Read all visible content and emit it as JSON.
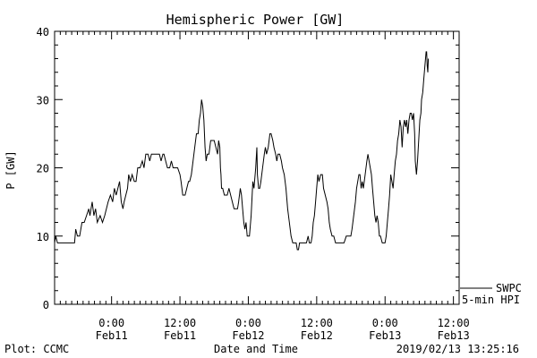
{
  "chart_data": {
    "type": "line",
    "title": "Hemispheric Power [GW]",
    "ylabel": "P [GW]",
    "xlabel": "Date and Time",
    "ylim": [
      0,
      40
    ],
    "xlim": [
      -10,
      61
    ],
    "y_ticks": [
      0,
      10,
      20,
      30,
      40
    ],
    "x_ticks": [
      {
        "x": 0,
        "line1": "0:00",
        "line2": "Feb11"
      },
      {
        "x": 12,
        "line1": "12:00",
        "line2": "Feb11"
      },
      {
        "x": 24,
        "line1": "0:00",
        "line2": "Feb12"
      },
      {
        "x": 36,
        "line1": "12:00",
        "line2": "Feb12"
      },
      {
        "x": 48,
        "line1": "0:00",
        "line2": "Feb13"
      },
      {
        "x": 60,
        "line1": "12:00",
        "line2": "Feb13"
      }
    ],
    "x_units": "hours from 2019-02-11 00:00",
    "series": [
      {
        "name": "5-min HPI",
        "color": "#000000",
        "points": [
          [
            -10.0,
            9
          ],
          [
            -9.8,
            10
          ],
          [
            -9.5,
            9
          ],
          [
            -7.0,
            9
          ],
          [
            -6.5,
            9
          ],
          [
            -6.3,
            11
          ],
          [
            -6.0,
            10
          ],
          [
            -5.6,
            10
          ],
          [
            -5.2,
            12
          ],
          [
            -4.8,
            12
          ],
          [
            -4.4,
            13
          ],
          [
            -4.0,
            14
          ],
          [
            -3.8,
            13
          ],
          [
            -3.4,
            15
          ],
          [
            -3.1,
            13
          ],
          [
            -2.8,
            14
          ],
          [
            -2.5,
            12
          ],
          [
            -2.0,
            13
          ],
          [
            -1.6,
            12
          ],
          [
            -1.2,
            13
          ],
          [
            -0.9,
            14
          ],
          [
            -0.6,
            15
          ],
          [
            -0.2,
            16
          ],
          [
            0.2,
            15
          ],
          [
            0.5,
            17
          ],
          [
            0.8,
            16
          ],
          [
            1.1,
            17
          ],
          [
            1.4,
            18
          ],
          [
            1.7,
            15
          ],
          [
            2.0,
            14
          ],
          [
            2.2,
            15
          ],
          [
            2.5,
            16
          ],
          [
            2.8,
            17
          ],
          [
            3.0,
            19
          ],
          [
            3.3,
            18
          ],
          [
            3.6,
            19
          ],
          [
            4.0,
            18
          ],
          [
            4.3,
            18
          ],
          [
            4.6,
            20
          ],
          [
            5.0,
            20
          ],
          [
            5.4,
            21
          ],
          [
            5.7,
            20
          ],
          [
            6.0,
            22
          ],
          [
            6.4,
            22
          ],
          [
            6.7,
            21
          ],
          [
            7.0,
            22
          ],
          [
            7.4,
            22
          ],
          [
            7.8,
            22
          ],
          [
            8.1,
            22
          ],
          [
            8.4,
            22
          ],
          [
            8.7,
            21
          ],
          [
            9.0,
            22
          ],
          [
            9.2,
            22
          ],
          [
            9.5,
            21
          ],
          [
            9.8,
            20
          ],
          [
            10.2,
            20
          ],
          [
            10.5,
            21
          ],
          [
            10.8,
            20
          ],
          [
            11.2,
            20
          ],
          [
            11.6,
            20
          ],
          [
            12.0,
            19
          ],
          [
            12.2,
            18
          ],
          [
            12.5,
            16
          ],
          [
            12.9,
            16
          ],
          [
            13.2,
            17
          ],
          [
            13.5,
            18
          ],
          [
            13.7,
            18
          ],
          [
            14.0,
            19
          ],
          [
            14.3,
            21
          ],
          [
            14.6,
            23
          ],
          [
            14.9,
            25
          ],
          [
            15.2,
            25
          ],
          [
            15.4,
            27
          ],
          [
            15.6,
            28
          ],
          [
            15.8,
            30
          ],
          [
            16.0,
            29
          ],
          [
            16.2,
            27
          ],
          [
            16.4,
            23
          ],
          [
            16.6,
            21
          ],
          [
            16.8,
            22
          ],
          [
            17.1,
            22
          ],
          [
            17.4,
            24
          ],
          [
            17.7,
            24
          ],
          [
            18.0,
            24
          ],
          [
            18.3,
            23
          ],
          [
            18.6,
            22
          ],
          [
            18.8,
            24
          ],
          [
            19.0,
            23
          ],
          [
            19.1,
            20
          ],
          [
            19.2,
            19
          ],
          [
            19.3,
            17
          ],
          [
            19.5,
            17
          ],
          [
            19.8,
            16
          ],
          [
            20.0,
            16
          ],
          [
            20.3,
            16
          ],
          [
            20.6,
            17
          ],
          [
            20.9,
            16
          ],
          [
            21.2,
            15
          ],
          [
            21.5,
            14
          ],
          [
            21.8,
            14
          ],
          [
            22.1,
            14
          ],
          [
            22.3,
            15
          ],
          [
            22.6,
            17
          ],
          [
            22.8,
            16
          ],
          [
            23.0,
            14
          ],
          [
            23.2,
            12
          ],
          [
            23.4,
            11
          ],
          [
            23.6,
            12
          ],
          [
            23.8,
            10
          ],
          [
            24.0,
            10
          ],
          [
            24.2,
            10
          ],
          [
            24.5,
            13
          ],
          [
            24.8,
            18
          ],
          [
            25.0,
            17
          ],
          [
            25.3,
            20
          ],
          [
            25.5,
            23
          ],
          [
            25.6,
            19
          ],
          [
            25.8,
            17
          ],
          [
            26.0,
            17
          ],
          [
            26.2,
            18
          ],
          [
            26.5,
            20
          ],
          [
            26.8,
            22
          ],
          [
            27.0,
            23
          ],
          [
            27.2,
            22
          ],
          [
            27.5,
            23
          ],
          [
            27.8,
            25
          ],
          [
            28.0,
            25
          ],
          [
            28.3,
            24
          ],
          [
            28.5,
            23
          ],
          [
            28.8,
            22
          ],
          [
            29.0,
            21
          ],
          [
            29.2,
            22
          ],
          [
            29.5,
            22
          ],
          [
            29.8,
            21
          ],
          [
            30.0,
            20
          ],
          [
            30.3,
            19
          ],
          [
            30.6,
            17
          ],
          [
            30.9,
            14
          ],
          [
            31.2,
            12
          ],
          [
            31.5,
            10
          ],
          [
            31.8,
            9
          ],
          [
            32.1,
            9
          ],
          [
            32.4,
            9
          ],
          [
            32.6,
            8
          ],
          [
            32.8,
            8
          ],
          [
            33.0,
            9
          ],
          [
            33.4,
            9
          ],
          [
            33.8,
            9
          ],
          [
            34.2,
            9
          ],
          [
            34.5,
            10
          ],
          [
            34.7,
            9
          ],
          [
            35.0,
            9
          ],
          [
            35.2,
            10
          ],
          [
            35.4,
            12
          ],
          [
            35.6,
            13
          ],
          [
            35.8,
            15
          ],
          [
            36.0,
            17
          ],
          [
            36.2,
            19
          ],
          [
            36.4,
            18
          ],
          [
            36.7,
            19
          ],
          [
            37.0,
            19
          ],
          [
            37.2,
            17
          ],
          [
            37.5,
            16
          ],
          [
            37.8,
            15
          ],
          [
            38.0,
            14
          ],
          [
            38.2,
            12
          ],
          [
            38.4,
            11
          ],
          [
            38.7,
            10
          ],
          [
            39.0,
            10
          ],
          [
            39.3,
            9
          ],
          [
            39.6,
            9
          ],
          [
            40.0,
            9
          ],
          [
            40.4,
            9
          ],
          [
            40.8,
            9
          ],
          [
            41.2,
            10
          ],
          [
            41.6,
            10
          ],
          [
            42.0,
            10
          ],
          [
            42.2,
            11
          ],
          [
            42.5,
            13
          ],
          [
            42.8,
            15
          ],
          [
            43.0,
            17
          ],
          [
            43.2,
            18
          ],
          [
            43.4,
            19
          ],
          [
            43.6,
            19
          ],
          [
            43.8,
            17
          ],
          [
            44.0,
            18
          ],
          [
            44.2,
            17
          ],
          [
            44.5,
            19
          ],
          [
            44.8,
            21
          ],
          [
            45.0,
            22
          ],
          [
            45.2,
            21
          ],
          [
            45.4,
            20
          ],
          [
            45.6,
            19
          ],
          [
            45.8,
            17
          ],
          [
            46.0,
            15
          ],
          [
            46.2,
            13
          ],
          [
            46.4,
            12
          ],
          [
            46.6,
            13
          ],
          [
            46.8,
            12
          ],
          [
            47.0,
            10
          ],
          [
            47.2,
            10
          ],
          [
            47.5,
            9
          ],
          [
            47.8,
            9
          ],
          [
            48.0,
            9
          ],
          [
            48.2,
            10
          ],
          [
            48.4,
            12
          ],
          [
            48.6,
            14
          ],
          [
            48.8,
            16
          ],
          [
            49.0,
            19
          ],
          [
            49.2,
            18
          ],
          [
            49.4,
            17
          ],
          [
            49.6,
            19
          ],
          [
            49.8,
            21
          ],
          [
            50.0,
            22
          ],
          [
            50.2,
            24
          ],
          [
            50.4,
            25
          ],
          [
            50.6,
            27
          ],
          [
            50.8,
            26
          ],
          [
            51.0,
            23
          ],
          [
            51.2,
            26
          ],
          [
            51.4,
            27
          ],
          [
            51.6,
            26
          ],
          [
            51.8,
            27
          ],
          [
            52.0,
            25
          ],
          [
            52.2,
            27
          ],
          [
            52.4,
            28
          ],
          [
            52.6,
            28
          ],
          [
            52.8,
            27
          ],
          [
            53.0,
            28
          ],
          [
            53.2,
            25
          ],
          [
            53.3,
            21
          ],
          [
            53.5,
            19
          ],
          [
            53.7,
            21
          ],
          [
            53.9,
            24
          ],
          [
            54.1,
            27
          ],
          [
            54.3,
            28
          ],
          [
            54.4,
            30
          ],
          [
            54.6,
            31
          ],
          [
            54.8,
            33
          ],
          [
            55.0,
            35
          ],
          [
            55.2,
            37
          ],
          [
            55.3,
            37
          ],
          [
            55.4,
            35
          ],
          [
            55.5,
            34
          ],
          [
            55.6,
            36
          ]
        ]
      }
    ],
    "legend": {
      "placement": "bottom-right",
      "entries": [
        {
          "label": "SWPC",
          "color": "#000000"
        },
        {
          "label": "5-min HPI",
          "color": "#000000"
        }
      ]
    }
  },
  "footer": {
    "plot_credit": "Plot: CCMC",
    "timestamp": "2019/02/13 13:25:16"
  }
}
